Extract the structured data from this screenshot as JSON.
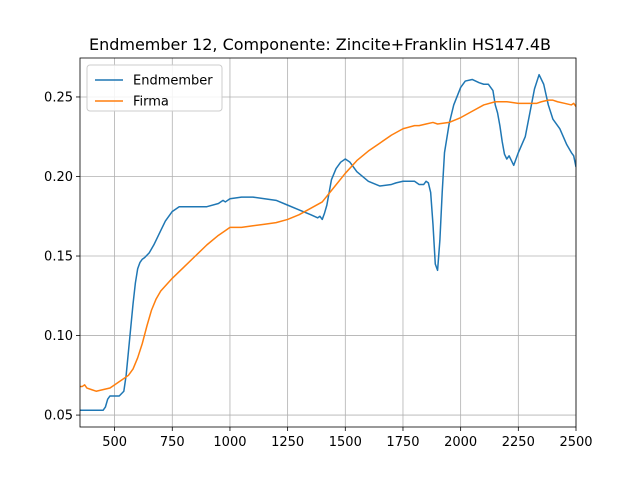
{
  "chart_data": {
    "type": "line",
    "title": "Endmember 12, Componente: Zincite+Franklin HS147.4B",
    "xlabel": "",
    "ylabel": "",
    "xlim": [
      350,
      2500
    ],
    "ylim": [
      0.0425,
      0.2745
    ],
    "xticks": [
      500,
      750,
      1000,
      1250,
      1500,
      1750,
      2000,
      2250,
      2500
    ],
    "xtick_labels": [
      "500",
      "750",
      "1000",
      "1250",
      "1500",
      "1750",
      "2000",
      "2250",
      "2500"
    ],
    "yticks": [
      0.05,
      0.1,
      0.15,
      0.2,
      0.25
    ],
    "ytick_labels": [
      "0.05",
      "0.10",
      "0.15",
      "0.20",
      "0.25"
    ],
    "grid": true,
    "legend": "upper-left",
    "series": [
      {
        "name": "Endmember",
        "color": "#1f77b4",
        "x": [
          350,
          400,
          450,
          460,
          470,
          480,
          500,
          520,
          540,
          550,
          560,
          570,
          580,
          590,
          600,
          610,
          620,
          630,
          650,
          670,
          700,
          720,
          750,
          780,
          800,
          850,
          900,
          950,
          970,
          980,
          1000,
          1050,
          1100,
          1150,
          1200,
          1250,
          1300,
          1350,
          1380,
          1390,
          1400,
          1410,
          1420,
          1430,
          1440,
          1460,
          1480,
          1500,
          1520,
          1550,
          1600,
          1650,
          1700,
          1720,
          1750,
          1780,
          1800,
          1820,
          1840,
          1850,
          1860,
          1870,
          1880,
          1890,
          1900,
          1910,
          1920,
          1930,
          1950,
          1970,
          2000,
          2020,
          2050,
          2080,
          2100,
          2120,
          2140,
          2150,
          2160,
          2170,
          2180,
          2190,
          2200,
          2210,
          2220,
          2230,
          2250,
          2280,
          2300,
          2320,
          2340,
          2360,
          2380,
          2400,
          2430,
          2460,
          2480,
          2490,
          2500
        ],
        "y": [
          0.053,
          0.053,
          0.053,
          0.055,
          0.06,
          0.062,
          0.062,
          0.062,
          0.065,
          0.075,
          0.09,
          0.105,
          0.12,
          0.133,
          0.142,
          0.146,
          0.148,
          0.149,
          0.152,
          0.157,
          0.166,
          0.172,
          0.178,
          0.181,
          0.181,
          0.181,
          0.181,
          0.183,
          0.185,
          0.184,
          0.186,
          0.187,
          0.187,
          0.186,
          0.185,
          0.182,
          0.179,
          0.176,
          0.174,
          0.175,
          0.173,
          0.177,
          0.182,
          0.19,
          0.198,
          0.205,
          0.209,
          0.211,
          0.209,
          0.203,
          0.197,
          0.194,
          0.195,
          0.196,
          0.197,
          0.197,
          0.197,
          0.195,
          0.195,
          0.197,
          0.196,
          0.19,
          0.17,
          0.145,
          0.141,
          0.16,
          0.19,
          0.215,
          0.233,
          0.245,
          0.256,
          0.26,
          0.261,
          0.259,
          0.258,
          0.258,
          0.254,
          0.245,
          0.24,
          0.232,
          0.222,
          0.214,
          0.211,
          0.213,
          0.21,
          0.207,
          0.215,
          0.225,
          0.24,
          0.255,
          0.264,
          0.258,
          0.245,
          0.236,
          0.23,
          0.22,
          0.215,
          0.213,
          0.206
        ]
      },
      {
        "name": "Firma",
        "color": "#ff7f0e",
        "x": [
          350,
          360,
          370,
          380,
          400,
          420,
          450,
          480,
          500,
          530,
          560,
          580,
          600,
          620,
          640,
          660,
          680,
          700,
          750,
          800,
          850,
          900,
          950,
          980,
          1000,
          1020,
          1050,
          1100,
          1150,
          1200,
          1250,
          1300,
          1350,
          1400,
          1450,
          1500,
          1550,
          1600,
          1650,
          1700,
          1750,
          1800,
          1820,
          1850,
          1880,
          1900,
          1950,
          2000,
          2050,
          2100,
          2150,
          2200,
          2250,
          2300,
          2330,
          2350,
          2380,
          2400,
          2420,
          2450,
          2480,
          2490,
          2500
        ],
        "y": [
          0.068,
          0.068,
          0.069,
          0.067,
          0.066,
          0.065,
          0.066,
          0.067,
          0.069,
          0.072,
          0.075,
          0.079,
          0.086,
          0.095,
          0.106,
          0.116,
          0.123,
          0.128,
          0.136,
          0.143,
          0.15,
          0.157,
          0.163,
          0.166,
          0.168,
          0.168,
          0.168,
          0.169,
          0.17,
          0.171,
          0.173,
          0.176,
          0.18,
          0.184,
          0.193,
          0.202,
          0.21,
          0.216,
          0.221,
          0.226,
          0.23,
          0.232,
          0.232,
          0.233,
          0.234,
          0.233,
          0.234,
          0.237,
          0.241,
          0.245,
          0.247,
          0.247,
          0.246,
          0.246,
          0.246,
          0.247,
          0.248,
          0.248,
          0.247,
          0.246,
          0.245,
          0.246,
          0.244
        ]
      }
    ]
  }
}
